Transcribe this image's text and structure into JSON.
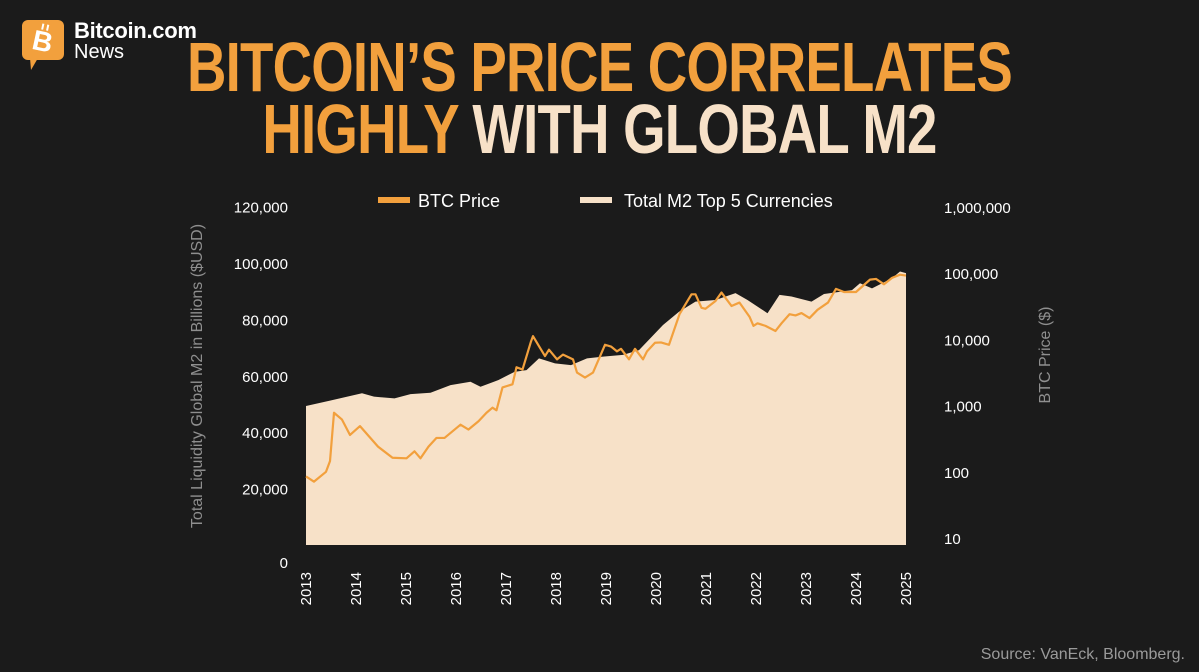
{
  "brand": {
    "name": "Bitcoin.com",
    "sub": "News",
    "icon": "bitcoin-chat-bubble-icon",
    "color": "#f2a03d"
  },
  "title": {
    "line1_orange": "BITCOIN’S PRICE CORRELATES",
    "line2_orange": "HIGHLY",
    "line2_cream": "WITH GLOBAL M2"
  },
  "source": "Source: VanEck, Bloomberg.",
  "colors": {
    "background": "#1b1b1b",
    "btc": "#f2a03d",
    "m2": "#f7e1c8"
  },
  "chart_data": {
    "type": "line+area",
    "xlabel": "",
    "ylabel_left": "Total Liquidity Global M2 in Billions ($USD)",
    "ylabel_right": "BTC Price  ($)",
    "x_ticks": [
      "2013",
      "2014",
      "2015",
      "2016",
      "2017",
      "2018",
      "2019",
      "2020",
      "2021",
      "2022",
      "2023",
      "2024",
      "2025"
    ],
    "xlim": [
      2013,
      2025
    ],
    "y_left_ticks": [
      "0",
      "20,000",
      "40,000",
      "60,000",
      "80,000",
      "100,000",
      "120,000"
    ],
    "ylim_left": [
      0,
      120000
    ],
    "y_right_ticks": [
      "10",
      "100",
      "1,000",
      "10,000",
      "100,000",
      "1,000,000"
    ],
    "ylim_right": [
      10,
      1000000
    ],
    "y_right_scale": "log",
    "grid": false,
    "legend_placement": "top",
    "series": [
      {
        "name": "BTC Price",
        "axis": "right",
        "type": "line",
        "x": [
          2013.0,
          2013.16,
          2013.4,
          2013.48,
          2013.56,
          2013.72,
          2013.88,
          2014.08,
          2014.44,
          2014.73,
          2015.01,
          2015.17,
          2015.29,
          2015.45,
          2015.61,
          2015.77,
          2016.09,
          2016.25,
          2016.45,
          2016.61,
          2016.73,
          2016.81,
          2016.93,
          2017.13,
          2017.21,
          2017.33,
          2017.5,
          2017.54,
          2017.66,
          2017.78,
          2017.86,
          2018.02,
          2018.14,
          2018.34,
          2018.42,
          2018.58,
          2018.74,
          2018.98,
          2019.1,
          2019.22,
          2019.3,
          2019.46,
          2019.58,
          2019.74,
          2019.82,
          2019.98,
          2020.1,
          2020.26,
          2020.47,
          2020.71,
          2020.79,
          2020.91,
          2020.99,
          2021.19,
          2021.31,
          2021.51,
          2021.67,
          2021.87,
          2021.95,
          2022.03,
          2022.19,
          2022.39,
          2022.51,
          2022.67,
          2022.79,
          2022.91,
          2023.07,
          2023.23,
          2023.44,
          2023.6,
          2023.76,
          2024.0,
          2024.28,
          2024.4,
          2024.56,
          2024.72,
          2024.88,
          2025.0
        ],
        "values": [
          85,
          71,
          100,
          145,
          780,
          615,
          360,
          490,
          240,
          163,
          160,
          204,
          160,
          240,
          325,
          325,
          515,
          435,
          580,
          780,
          930,
          850,
          1880,
          2100,
          3800,
          3500,
          9300,
          11200,
          7900,
          5600,
          7000,
          5000,
          5900,
          5000,
          3150,
          2650,
          3150,
          8300,
          7800,
          6600,
          7200,
          5000,
          7200,
          5000,
          6600,
          8900,
          9000,
          8300,
          24000,
          48000,
          48000,
          30000,
          29000,
          38000,
          51000,
          32000,
          36000,
          22000,
          16000,
          17500,
          16000,
          13400,
          17500,
          24000,
          23000,
          25000,
          21000,
          28000,
          36000,
          58000,
          52000,
          52000,
          80000,
          82000,
          68000,
          85000,
          95000,
          92000
        ]
      },
      {
        "name": "Total M2 Top 5 Currencies",
        "axis": "left",
        "type": "area",
        "x": [
          2013.0,
          2013.48,
          2014.12,
          2014.36,
          2014.77,
          2015.09,
          2015.49,
          2015.89,
          2016.29,
          2016.49,
          2016.85,
          2017.17,
          2017.41,
          2017.66,
          2017.98,
          2018.3,
          2018.62,
          2018.94,
          2019.34,
          2019.66,
          2020.14,
          2020.46,
          2020.79,
          2021.19,
          2021.59,
          2021.83,
          2022.23,
          2022.47,
          2022.71,
          2023.11,
          2023.36,
          2023.92,
          2024.08,
          2024.32,
          2024.72,
          2024.88,
          2025.0
        ],
        "values": [
          49300,
          51200,
          53800,
          52600,
          52000,
          53500,
          54000,
          56700,
          57900,
          56100,
          58500,
          61400,
          62000,
          66200,
          64400,
          63800,
          66200,
          66800,
          67400,
          69100,
          78000,
          82700,
          86300,
          86900,
          89300,
          86900,
          82200,
          88700,
          88100,
          86300,
          89000,
          90400,
          92800,
          91000,
          94600,
          97000,
          96400
        ]
      }
    ]
  }
}
